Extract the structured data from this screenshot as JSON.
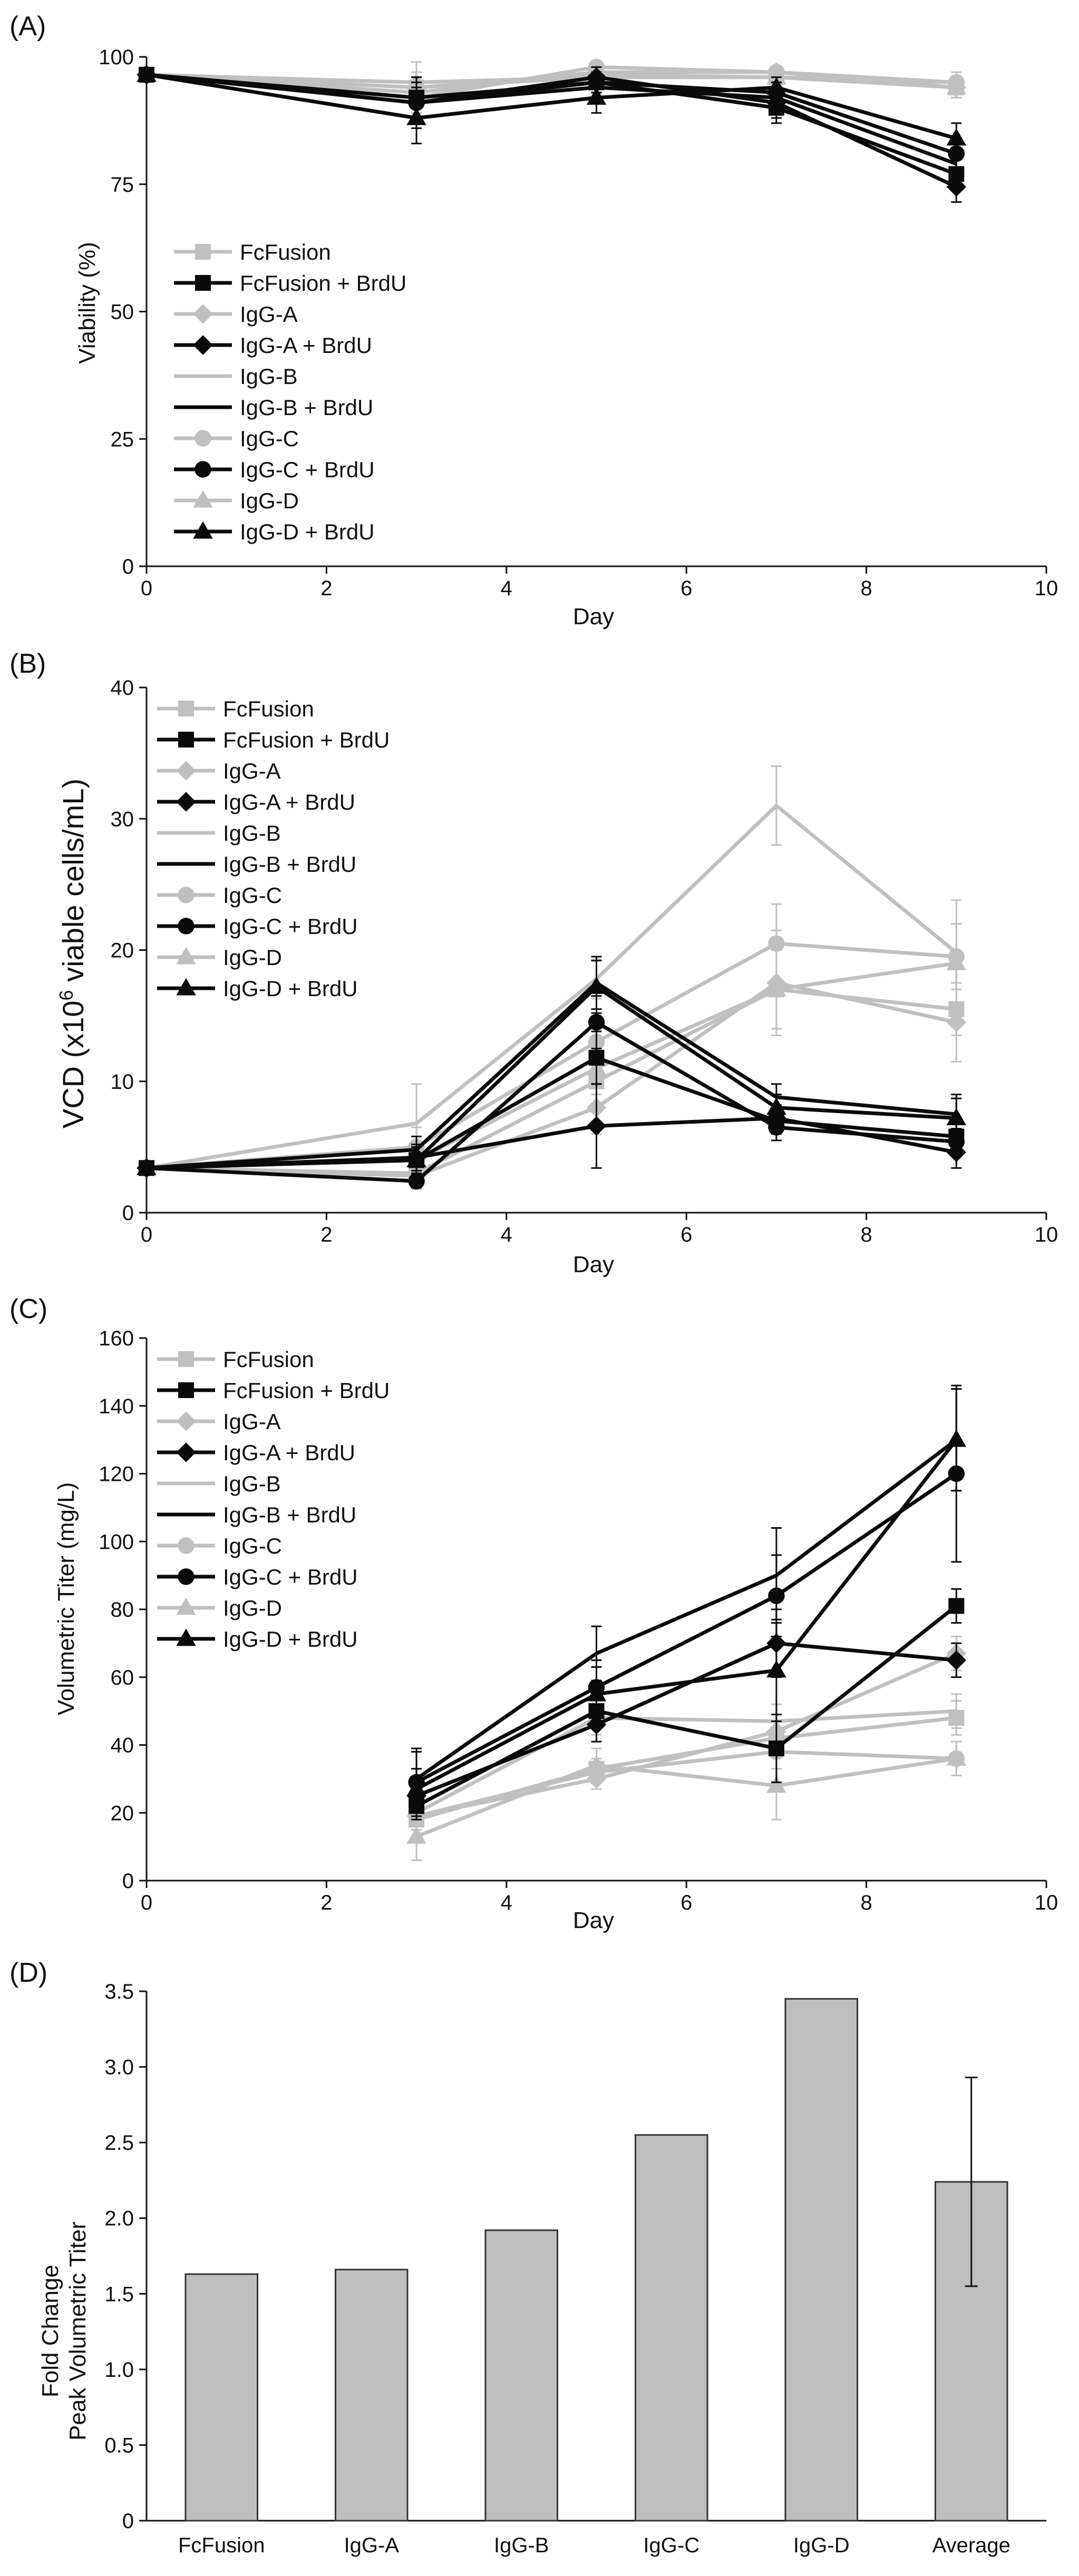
{
  "colors": {
    "gray": "#c0c0c0",
    "black": "#0a0a0a",
    "bar_fill": "#bfbfbf",
    "bar_stroke": "#333333"
  },
  "chart_data": [
    {
      "panel_label": "(A)",
      "type": "line",
      "xlabel": "Day",
      "ylabel": "Viability (%)",
      "xlim": [
        0,
        10
      ],
      "ylim": [
        0,
        100
      ],
      "xticks": [
        "0",
        "2",
        "4",
        "6",
        "8",
        "10"
      ],
      "yticks": [
        "0",
        "25",
        "50",
        "75",
        "100"
      ],
      "legend_position": "middle-left",
      "series": [
        {
          "name": "FcFusion",
          "color": "gray",
          "marker": "square",
          "x": [
            0,
            3,
            5,
            7,
            9
          ],
          "y": [
            96.5,
            94,
            96.5,
            96,
            94
          ],
          "err": [
            0,
            5,
            2,
            2,
            2
          ]
        },
        {
          "name": "FcFusion + BrdU",
          "color": "black",
          "marker": "square",
          "x": [
            0,
            3,
            5,
            7,
            9
          ],
          "y": [
            96.5,
            92,
            95,
            90,
            77
          ],
          "err": [
            0,
            4,
            2,
            3,
            3
          ]
        },
        {
          "name": "IgG-A",
          "color": "gray",
          "marker": "diamond",
          "x": [
            0,
            3,
            5,
            7,
            9
          ],
          "y": [
            96.5,
            93,
            97,
            97,
            94
          ],
          "err": [
            0,
            3,
            1,
            1,
            2
          ]
        },
        {
          "name": "IgG-A + BrdU",
          "color": "black",
          "marker": "diamond",
          "x": [
            0,
            3,
            5,
            7,
            9
          ],
          "y": [
            96.5,
            91,
            96,
            91,
            74.5
          ],
          "err": [
            0,
            5,
            2,
            3,
            3
          ]
        },
        {
          "name": "IgG-B",
          "color": "gray",
          "marker": "none",
          "x": [
            0,
            3,
            5,
            7,
            9
          ],
          "y": [
            96.5,
            94,
            96,
            96,
            95
          ],
          "err": [
            0,
            3,
            1,
            1,
            2
          ]
        },
        {
          "name": "IgG-B + BrdU",
          "color": "black",
          "marker": "none",
          "x": [
            0,
            3,
            5,
            7,
            9
          ],
          "y": [
            96.5,
            91,
            94,
            92,
            79
          ],
          "err": [
            0,
            4,
            2,
            3,
            3
          ]
        },
        {
          "name": "IgG-C",
          "color": "gray",
          "marker": "circle",
          "x": [
            0,
            3,
            5,
            7,
            9
          ],
          "y": [
            96.5,
            92,
            98,
            97,
            95
          ],
          "err": [
            0,
            2,
            1,
            1,
            1
          ]
        },
        {
          "name": "IgG-C + BrdU",
          "color": "black",
          "marker": "circle",
          "x": [
            0,
            3,
            5,
            7,
            9
          ],
          "y": [
            96.5,
            91,
            95,
            93,
            81
          ],
          "err": [
            0,
            3,
            2,
            2,
            3
          ]
        },
        {
          "name": "IgG-D",
          "color": "gray",
          "marker": "triangle",
          "x": [
            0,
            3,
            5,
            7,
            9
          ],
          "y": [
            96.5,
            95,
            96,
            96,
            94
          ],
          "err": [
            0,
            2,
            1,
            1,
            2
          ]
        },
        {
          "name": "IgG-D + BrdU",
          "color": "black",
          "marker": "triangle",
          "x": [
            0,
            3,
            5,
            7,
            9
          ],
          "y": [
            96.5,
            88,
            92,
            94,
            84
          ],
          "err": [
            0,
            5,
            3,
            2,
            3
          ]
        }
      ]
    },
    {
      "panel_label": "(B)",
      "type": "line",
      "xlabel": "Day",
      "ylabel_prefix": "VCD (x10",
      "ylabel_sup": "6",
      "ylabel_suffix": " viable cells/mL)",
      "xlim": [
        0,
        10
      ],
      "ylim": [
        0,
        40
      ],
      "xticks": [
        "0",
        "2",
        "4",
        "6",
        "8",
        "10"
      ],
      "yticks": [
        "0",
        "10",
        "20",
        "30",
        "40"
      ],
      "legend_position": "top-left",
      "series": [
        {
          "name": "FcFusion",
          "color": "gray",
          "marker": "square",
          "x": [
            0,
            3,
            5,
            7,
            9
          ],
          "y": [
            3.4,
            3.0,
            10.0,
            17.0,
            15.5
          ],
          "err": [
            0,
            1.0,
            2.0,
            3.0,
            2.0
          ]
        },
        {
          "name": "FcFusion + BrdU",
          "color": "black",
          "marker": "square",
          "x": [
            0,
            3,
            5,
            7,
            9
          ],
          "y": [
            3.4,
            4.0,
            11.8,
            7.0,
            5.8
          ],
          "err": [
            0,
            1.0,
            2.0,
            1.0,
            1.0
          ]
        },
        {
          "name": "IgG-A",
          "color": "gray",
          "marker": "diamond",
          "x": [
            0,
            3,
            5,
            7,
            9
          ],
          "y": [
            3.4,
            2.8,
            8.0,
            17.5,
            14.5
          ],
          "err": [
            0,
            1.0,
            2.0,
            4.0,
            3.0
          ]
        },
        {
          "name": "IgG-A + BrdU",
          "color": "black",
          "marker": "diamond",
          "x": [
            0,
            3,
            5,
            7,
            9
          ],
          "y": [
            3.4,
            4.2,
            6.6,
            7.2,
            4.6
          ],
          "err": [
            0,
            1.0,
            3.2,
            1.0,
            1.2
          ]
        },
        {
          "name": "IgG-B",
          "color": "gray",
          "marker": "none",
          "x": [
            0,
            3,
            5,
            7,
            9
          ],
          "y": [
            3.4,
            6.8,
            17.8,
            31.0,
            19.8
          ],
          "err": [
            0,
            3.0,
            1.5,
            3.0,
            4.0
          ]
        },
        {
          "name": "IgG-B + BrdU",
          "color": "black",
          "marker": "none",
          "x": [
            0,
            3,
            5,
            7,
            9
          ],
          "y": [
            3.4,
            4.8,
            17.5,
            8.8,
            7.5
          ],
          "err": [
            0,
            1.0,
            2.0,
            1.0,
            1.5
          ]
        },
        {
          "name": "IgG-C",
          "color": "gray",
          "marker": "circle",
          "x": [
            0,
            3,
            5,
            7,
            9
          ],
          "y": [
            3.4,
            5.0,
            13.0,
            20.5,
            19.5
          ],
          "err": [
            0,
            1.5,
            2.0,
            3.0,
            2.5
          ]
        },
        {
          "name": "IgG-C + BrdU",
          "color": "black",
          "marker": "circle",
          "x": [
            0,
            3,
            5,
            7,
            9
          ],
          "y": [
            3.4,
            2.4,
            14.5,
            6.5,
            5.4
          ],
          "err": [
            0,
            0.5,
            2.0,
            1.0,
            1.0
          ]
        },
        {
          "name": "IgG-D",
          "color": "gray",
          "marker": "triangle",
          "x": [
            0,
            3,
            5,
            7,
            9
          ],
          "y": [
            3.4,
            4.0,
            11.0,
            17.0,
            19.0
          ],
          "err": [
            0,
            1.0,
            2.0,
            3.0,
            3.0
          ]
        },
        {
          "name": "IgG-D + BrdU",
          "color": "black",
          "marker": "triangle",
          "x": [
            0,
            3,
            5,
            7,
            9
          ],
          "y": [
            3.4,
            4.0,
            17.2,
            8.0,
            7.2
          ],
          "err": [
            0,
            1.0,
            2.0,
            1.0,
            1.5
          ]
        }
      ]
    },
    {
      "panel_label": "(C)",
      "type": "line",
      "xlabel": "Day",
      "ylabel": "Volumetric Titer (mg/L)",
      "xlim": [
        0,
        10
      ],
      "ylim": [
        0,
        160
      ],
      "xticks": [
        "0",
        "2",
        "4",
        "6",
        "8",
        "10"
      ],
      "yticks": [
        "0",
        "20",
        "40",
        "60",
        "80",
        "100",
        "120",
        "140",
        "160"
      ],
      "legend_position": "top-left",
      "series": [
        {
          "name": "FcFusion",
          "color": "gray",
          "marker": "square",
          "x": [
            3,
            5,
            7,
            9
          ],
          "y": [
            18,
            33,
            42,
            48
          ],
          "err": [
            3,
            3,
            5,
            5
          ]
        },
        {
          "name": "FcFusion + BrdU",
          "color": "black",
          "marker": "square",
          "x": [
            3,
            5,
            7,
            9
          ],
          "y": [
            22,
            50,
            39,
            81
          ],
          "err": [
            4,
            5,
            10,
            5
          ]
        },
        {
          "name": "IgG-A",
          "color": "gray",
          "marker": "diamond",
          "x": [
            3,
            5,
            7,
            9
          ],
          "y": [
            19,
            30,
            44,
            67
          ],
          "err": [
            3,
            3,
            5,
            5
          ]
        },
        {
          "name": "IgG-A + BrdU",
          "color": "black",
          "marker": "diamond",
          "x": [
            3,
            5,
            7,
            9
          ],
          "y": [
            25,
            46,
            70,
            65
          ],
          "err": [
            5,
            5,
            10,
            5
          ]
        },
        {
          "name": "IgG-B",
          "color": "gray",
          "marker": "none",
          "x": [
            3,
            5,
            7,
            9
          ],
          "y": [
            20,
            48,
            47,
            50
          ],
          "err": [
            3,
            5,
            5,
            5
          ]
        },
        {
          "name": "IgG-B + BrdU",
          "color": "black",
          "marker": "none",
          "x": [
            3,
            5,
            7,
            9
          ],
          "y": [
            30,
            67,
            90,
            130
          ],
          "err": [
            8,
            8,
            14,
            15
          ]
        },
        {
          "name": "IgG-C",
          "color": "gray",
          "marker": "circle",
          "x": [
            3,
            5,
            7,
            9
          ],
          "y": [
            19,
            32,
            38,
            36
          ],
          "err": [
            3,
            3,
            5,
            5
          ]
        },
        {
          "name": "IgG-C + BrdU",
          "color": "black",
          "marker": "circle",
          "x": [
            3,
            5,
            7,
            9
          ],
          "y": [
            29,
            57,
            84,
            120
          ],
          "err": [
            10,
            8,
            12,
            26
          ]
        },
        {
          "name": "IgG-D",
          "color": "gray",
          "marker": "triangle",
          "x": [
            3,
            5,
            7,
            9
          ],
          "y": [
            13,
            34,
            28,
            36
          ],
          "err": [
            7,
            5,
            10,
            5
          ]
        },
        {
          "name": "IgG-D + BrdU",
          "color": "black",
          "marker": "triangle",
          "x": [
            3,
            5,
            7,
            9
          ],
          "y": [
            27,
            55,
            62,
            130
          ],
          "err": [
            6,
            8,
            15,
            15
          ]
        }
      ]
    },
    {
      "panel_label": "(D)",
      "type": "bar",
      "ylabel_line1": "Fold Change",
      "ylabel_line2": "Peak Volumetric Titer",
      "ylim": [
        0,
        3.5
      ],
      "yticks": [
        "0",
        "0.5",
        "1.0",
        "1.5",
        "2.0",
        "2.5",
        "3.0",
        "3.5"
      ],
      "categories": [
        "FcFusion",
        "IgG-A",
        "IgG-B",
        "IgG-C",
        "IgG-D",
        "Average"
      ],
      "values": [
        1.63,
        1.66,
        1.92,
        2.55,
        3.45,
        2.24
      ],
      "errors": [
        0,
        0,
        0,
        0,
        0,
        0.69
      ]
    }
  ]
}
